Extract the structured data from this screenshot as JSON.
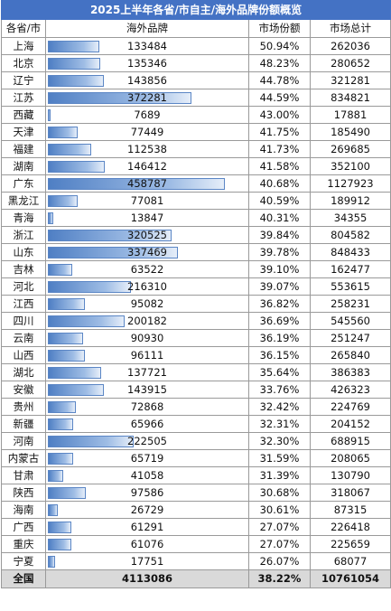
{
  "table": {
    "title": "2025上半年各省/市自主/海外品牌份额概览",
    "headers": {
      "province": "各省/市",
      "overseas": "海外品牌",
      "share": "市场份额",
      "total": "市场总计"
    },
    "bar_color": "#4f7fc4",
    "rows": [
      {
        "province": "上海",
        "overseas": "133484",
        "share": "50.94%",
        "total": "262036",
        "bar_fraction": 0.291
      },
      {
        "province": "北京",
        "overseas": "135346",
        "share": "48.23%",
        "total": "280652",
        "bar_fraction": 0.295
      },
      {
        "province": "辽宁",
        "overseas": "143856",
        "share": "44.78%",
        "total": "321281",
        "bar_fraction": 0.314
      },
      {
        "province": "江苏",
        "overseas": "372281",
        "share": "44.59%",
        "total": "834821",
        "bar_fraction": 0.811
      },
      {
        "province": "西藏",
        "overseas": "7689",
        "share": "43.00%",
        "total": "17881",
        "bar_fraction": 0.017
      },
      {
        "province": "天津",
        "overseas": "77449",
        "share": "41.75%",
        "total": "185490",
        "bar_fraction": 0.169
      },
      {
        "province": "福建",
        "overseas": "112538",
        "share": "41.73%",
        "total": "269685",
        "bar_fraction": 0.245
      },
      {
        "province": "湖南",
        "overseas": "146412",
        "share": "41.58%",
        "total": "352100",
        "bar_fraction": 0.319
      },
      {
        "province": "广东",
        "overseas": "458787",
        "share": "40.68%",
        "total": "1127923",
        "bar_fraction": 1.0
      },
      {
        "province": "黑龙江",
        "overseas": "77081",
        "share": "40.59%",
        "total": "189912",
        "bar_fraction": 0.168
      },
      {
        "province": "青海",
        "overseas": "13847",
        "share": "40.31%",
        "total": "34355",
        "bar_fraction": 0.03
      },
      {
        "province": "浙江",
        "overseas": "320525",
        "share": "39.84%",
        "total": "804582",
        "bar_fraction": 0.699
      },
      {
        "province": "山东",
        "overseas": "337469",
        "share": "39.78%",
        "total": "848433",
        "bar_fraction": 0.736
      },
      {
        "province": "吉林",
        "overseas": "63522",
        "share": "39.10%",
        "total": "162477",
        "bar_fraction": 0.138
      },
      {
        "province": "河北",
        "overseas": "216310",
        "share": "39.07%",
        "total": "553615",
        "bar_fraction": 0.471
      },
      {
        "province": "江西",
        "overseas": "95082",
        "share": "36.82%",
        "total": "258231",
        "bar_fraction": 0.207
      },
      {
        "province": "四川",
        "overseas": "200182",
        "share": "36.69%",
        "total": "545560",
        "bar_fraction": 0.436
      },
      {
        "province": "云南",
        "overseas": "90930",
        "share": "36.19%",
        "total": "251247",
        "bar_fraction": 0.198
      },
      {
        "province": "山西",
        "overseas": "96111",
        "share": "36.15%",
        "total": "265840",
        "bar_fraction": 0.209
      },
      {
        "province": "湖北",
        "overseas": "137721",
        "share": "35.64%",
        "total": "386383",
        "bar_fraction": 0.3
      },
      {
        "province": "安徽",
        "overseas": "143915",
        "share": "33.76%",
        "total": "426323",
        "bar_fraction": 0.314
      },
      {
        "province": "贵州",
        "overseas": "72868",
        "share": "32.42%",
        "total": "224769",
        "bar_fraction": 0.159
      },
      {
        "province": "新疆",
        "overseas": "65966",
        "share": "32.31%",
        "total": "204152",
        "bar_fraction": 0.144
      },
      {
        "province": "河南",
        "overseas": "222505",
        "share": "32.30%",
        "total": "688915",
        "bar_fraction": 0.485
      },
      {
        "province": "内蒙古",
        "overseas": "65719",
        "share": "31.59%",
        "total": "208065",
        "bar_fraction": 0.143
      },
      {
        "province": "甘肃",
        "overseas": "41058",
        "share": "31.39%",
        "total": "130790",
        "bar_fraction": 0.089
      },
      {
        "province": "陕西",
        "overseas": "97586",
        "share": "30.68%",
        "total": "318067",
        "bar_fraction": 0.213
      },
      {
        "province": "海南",
        "overseas": "26729",
        "share": "30.61%",
        "total": "87315",
        "bar_fraction": 0.058
      },
      {
        "province": "广西",
        "overseas": "61291",
        "share": "27.07%",
        "total": "226418",
        "bar_fraction": 0.134
      },
      {
        "province": "重庆",
        "overseas": "61076",
        "share": "27.07%",
        "total": "225659",
        "bar_fraction": 0.133
      },
      {
        "province": "宁夏",
        "overseas": "17751",
        "share": "26.07%",
        "total": "68077",
        "bar_fraction": 0.039
      }
    ],
    "total_row": {
      "province": "全国",
      "overseas": "4113086",
      "share": "38.22%",
      "total": "10761054"
    }
  }
}
